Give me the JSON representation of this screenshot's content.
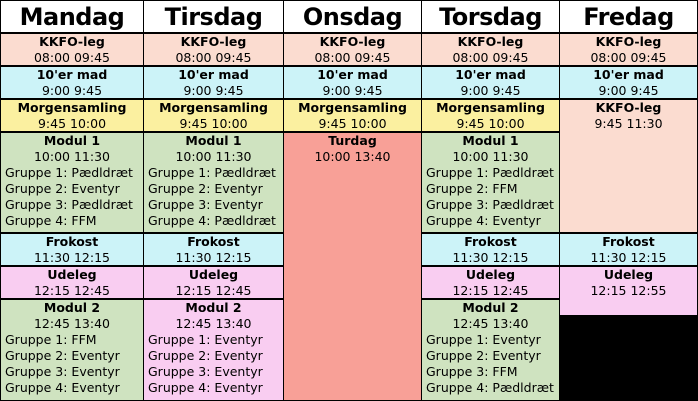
{
  "days": [
    {
      "name": "Mandag",
      "blocks": [
        {
          "title": "KKFO-leg",
          "lines": [
            "08:00  09:45"
          ]
        },
        {
          "title": "10'er mad",
          "lines": [
            "9:00  9:45"
          ]
        },
        {
          "title": "Morgensamling",
          "lines": [
            "9:45  10:00"
          ]
        },
        {
          "title": "Modul 1",
          "lines": [
            "10:00  11:30",
            "Gruppe 1: Pædldræt",
            "Gruppe 2: Eventyr",
            "Gruppe 3: Pædldræt",
            "Gruppe 4:  FFM"
          ]
        },
        {
          "title": "Frokost",
          "lines": [
            "11:30  12:15"
          ]
        },
        {
          "title": "Udeleg",
          "lines": [
            "12:15  12:45"
          ]
        },
        {
          "title": "Modul 2",
          "lines": [
            "12:45  13:40",
            "Gruppe 1: FFM",
            "Gruppe 2: Eventyr",
            "Gruppe 3: Eventyr",
            "Gruppe 4: Eventyr"
          ]
        }
      ]
    },
    {
      "name": "Tirsdag",
      "blocks": [
        {
          "title": "KKFO-leg",
          "lines": [
            "08:00  09:45"
          ]
        },
        {
          "title": "10'er mad",
          "lines": [
            "9:00  9:45"
          ]
        },
        {
          "title": "Morgensamling",
          "lines": [
            "9:45  10:00"
          ]
        },
        {
          "title": "Modul 1",
          "lines": [
            "10:00  11:30",
            "Gruppe 1:  Pædldræt",
            "Gruppe 2: Eventyr",
            "Gruppe 3: Eventyr",
            "Gruppe 4: Pædldræt"
          ]
        },
        {
          "title": "Frokost",
          "lines": [
            "11:30  12:15"
          ]
        },
        {
          "title": "Udeleg",
          "lines": [
            "12:15  12:45"
          ]
        },
        {
          "title": "Modul 2",
          "lines": [
            "12:45  13:40",
            "Gruppe 1: Eventyr",
            "Gruppe 2: Eventyr",
            "Gruppe 3: Eventyr",
            "Gruppe 4: Eventyr"
          ]
        }
      ]
    },
    {
      "name": "Onsdag",
      "blocks": [
        {
          "title": "KKFO-leg",
          "lines": [
            "08:00  09:45"
          ]
        },
        {
          "title": "10'er mad",
          "lines": [
            "9:00  9:45"
          ]
        },
        {
          "title": "Morgensamling",
          "lines": [
            "9:45  10:00"
          ]
        },
        {
          "title": "Turdag",
          "lines": [
            "10:00  13:40"
          ]
        }
      ]
    },
    {
      "name": "Torsdag",
      "blocks": [
        {
          "title": "KKFO-leg",
          "lines": [
            "08:00  09:45"
          ]
        },
        {
          "title": "10'er mad",
          "lines": [
            "9:00  9:45"
          ]
        },
        {
          "title": "Morgensamling",
          "lines": [
            "9:45  10:00"
          ]
        },
        {
          "title": "Modul 1",
          "lines": [
            "10:00  11:30",
            "Gruppe 1: Pædldræt",
            "Gruppe 2: FFM",
            "Gruppe 3: Pædldræt",
            "Gruppe 4: Eventyr"
          ]
        },
        {
          "title": "Frokost",
          "lines": [
            "11:30  12:15"
          ]
        },
        {
          "title": "Udeleg",
          "lines": [
            "12:15  12:45"
          ]
        },
        {
          "title": "Modul 2",
          "lines": [
            "12:45  13:40",
            "Gruppe 1: Eventyr",
            "Gruppe 2: Eventyr",
            "Gruppe 3: FFM",
            "Gruppe 4: Pædldræt"
          ]
        }
      ]
    },
    {
      "name": "Fredag",
      "blocks": [
        {
          "title": "KKFO-leg",
          "lines": [
            "08:00  09:45"
          ]
        },
        {
          "title": "10'er mad",
          "lines": [
            "9:00  9:45"
          ]
        },
        {
          "title": "KKFO-leg",
          "lines": [
            "9:45  11:30"
          ]
        },
        {
          "title": "Frokost",
          "lines": [
            "11:30  12:15"
          ]
        },
        {
          "title": "Udeleg",
          "lines": [
            "12:15  12:55"
          ]
        }
      ]
    }
  ]
}
